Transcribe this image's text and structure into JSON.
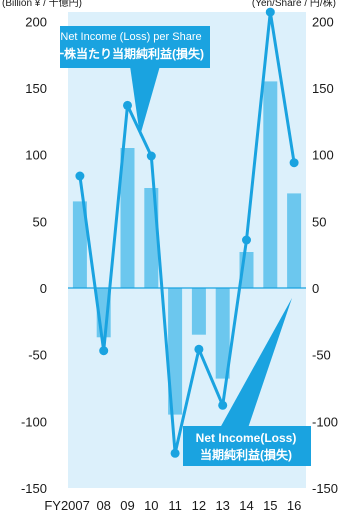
{
  "chart_data": {
    "type": "bar+line",
    "left_unit_label": "(Billion ¥ / 十億円)",
    "right_unit_label": "(Yen/Share / 円/株)",
    "categories": [
      "FY2007",
      "08",
      "09",
      "10",
      "11",
      "12",
      "13",
      "14",
      "15",
      "16"
    ],
    "yticks": [
      200,
      150,
      100,
      50,
      0,
      -50,
      -100,
      -150
    ],
    "ylim": [
      -150,
      205
    ],
    "series": [
      {
        "name": "Net Income(Loss) 当期純利益(損失)",
        "kind": "bar",
        "color": "#6cc7ee",
        "values": [
          65,
          -37,
          105,
          75,
          -95,
          -35,
          -68,
          27,
          155,
          71
        ]
      },
      {
        "name": "Net Income (Loss) per Share 一株当たり当期純利益(損失)",
        "kind": "line",
        "color": "#1aa3e0",
        "values": [
          84,
          -47,
          137,
          99,
          -124,
          -46,
          -88,
          36,
          207,
          94
        ]
      }
    ]
  },
  "callouts": {
    "per_share_line1": "Net Income (Loss)  per Share",
    "per_share_line2": "一株当たり当期純利益(損失)",
    "net_income_line1": "Net Income(Loss)",
    "net_income_line2": "当期純利益(損失)"
  },
  "colors": {
    "plot_background": "#dcf0fb",
    "bar": "#6cc7ee",
    "line": "#1aa3e0",
    "callout_fill": "#1aa3e0",
    "zero_line": "#1aa3e0"
  }
}
